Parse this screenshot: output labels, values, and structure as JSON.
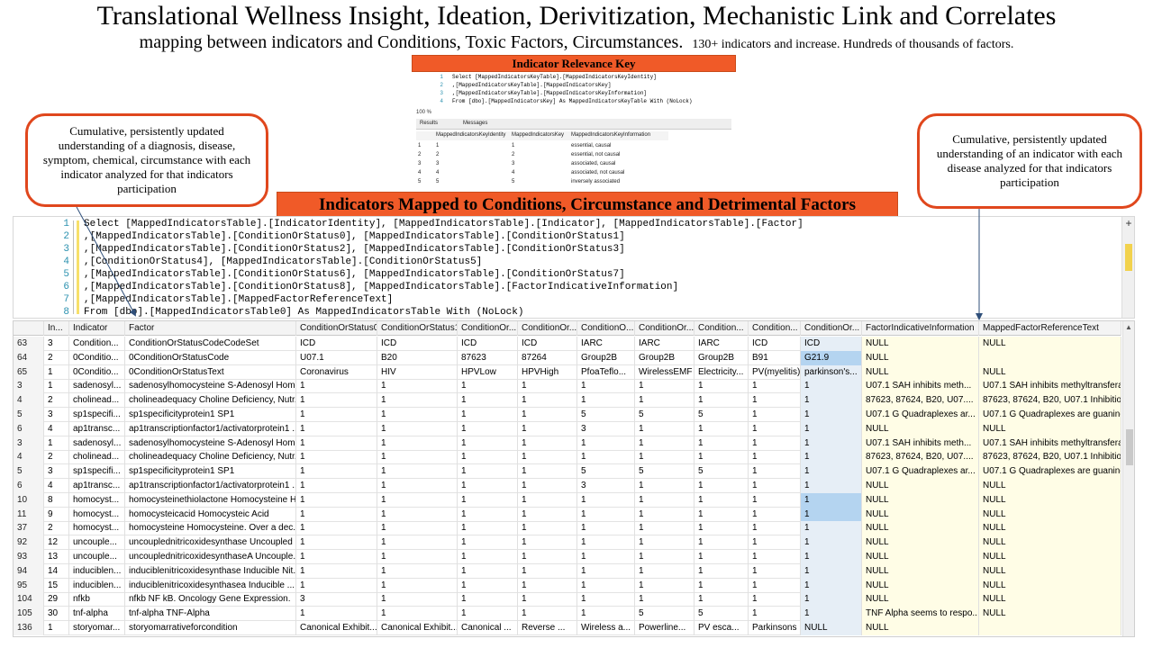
{
  "title": "Translational Wellness Insight, Ideation, Derivitization, Mechanistic Link and Correlates",
  "subtitle_main": "mapping between indicators and Conditions, Toxic Factors, Circumstances.",
  "subtitle_small": "130+ indicators and increase. Hundreds of thousands of factors.",
  "key_banner": "Indicator Relevance Key",
  "main_banner": "Indicators Mapped to Conditions, Circumstance and Detrimental Factors",
  "note_left": "Cumulative, persistently updated understanding of a diagnosis, disease, symptom, chemical, circumstance with each indicator analyzed for that indicators participation",
  "note_right": "Cumulative, persistently updated understanding of an indicator with each disease analyzed for that indicators participation",
  "key_query": {
    "line_numbers": [
      "1",
      "2",
      "3",
      "4"
    ],
    "lines": [
      "Select [MappedIndicatorsKeyTable].[MappedIndicatorsKeyIdentity]",
      "    ,[MappedIndicatorsKeyTable].[MappedIndicatorsKey]",
      "    ,[MappedIndicatorsKeyTable].[MappedIndicatorsKeyInformation]",
      "    From [dbo].[MappedIndicatorsKey] As MappedIndicatorsKeyTable With (NoLock)"
    ],
    "zoom": "100 %",
    "tab_results": "Results",
    "tab_messages": "Messages",
    "columns": [
      "MappedIndicatorsKeyIdentity",
      "MappedIndicatorsKey",
      "MappedIndicatorsKeyInformation"
    ],
    "rows": [
      [
        "1",
        "1",
        "1",
        "essential, causal"
      ],
      [
        "2",
        "2",
        "2",
        "essential, not causal"
      ],
      [
        "3",
        "3",
        "3",
        "associated, causal"
      ],
      [
        "4",
        "4",
        "4",
        "associated, not causal"
      ],
      [
        "5",
        "5",
        "5",
        "inversely associated"
      ]
    ]
  },
  "editor": {
    "line_numbers": [
      "1",
      "2",
      "3",
      "4",
      "5",
      "6",
      "7",
      "8"
    ],
    "lines": [
      "Select [MappedIndicatorsTable].[IndicatorIdentity], [MappedIndicatorsTable].[Indicator], [MappedIndicatorsTable].[Factor]",
      "    ,[MappedIndicatorsTable].[ConditionOrStatus0], [MappedIndicatorsTable].[ConditionOrStatus1]",
      "    ,[MappedIndicatorsTable].[ConditionOrStatus2], [MappedIndicatorsTable].[ConditionOrStatus3]",
      "    ,[ConditionOrStatus4], [MappedIndicatorsTable].[ConditionOrStatus5]",
      "    ,[MappedIndicatorsTable].[ConditionOrStatus6], [MappedIndicatorsTable].[ConditionOrStatus7]",
      "    ,[MappedIndicatorsTable].[ConditionOrStatus8], [MappedIndicatorsTable].[FactorIndicativeInformation]",
      "    ,[MappedIndicatorsTable].[MappedFactorReferenceText]",
      "  From [dbo].[MappedIndicatorsTable0] As MappedIndicatorsTable With (NoLock)"
    ],
    "plus_icon": "+"
  },
  "grid": {
    "columns": [
      "",
      "In...",
      "Indicator",
      "Factor",
      "ConditionOrStatus0",
      "ConditionOrStatus1",
      "ConditionOr...",
      "ConditionOr...",
      "ConditionO...",
      "ConditionOr...",
      "Condition...",
      "Condition...",
      "ConditionOr...",
      "FactorIndicativeInformation",
      "MappedFactorReferenceText"
    ],
    "rows": [
      [
        "63",
        "3",
        "Condition...",
        "ConditionOrStatusCodeCodeSet",
        "ICD",
        "ICD",
        "ICD",
        "ICD",
        "IARC",
        "IARC",
        "IARC",
        "ICD",
        "ICD",
        "NULL",
        "NULL"
      ],
      [
        "64",
        "2",
        "0Conditio...",
        "0ConditionOrStatusCode",
        "U07.1",
        "B20",
        "87623",
        "87264",
        "Group2B",
        "Group2B",
        "Group2B",
        "B91",
        "G21.9",
        "NULL",
        ""
      ],
      [
        "65",
        "1",
        "0Conditio...",
        "0ConditionOrStatusText",
        "Coronavirus",
        "HIV",
        "HPVLow",
        "HPVHigh",
        "PfoaTeflo...",
        "WirelessEMF",
        "Electricity...",
        "PV(myelitis)",
        "parkinson's...",
        "NULL",
        "NULL"
      ],
      [
        "3",
        "1",
        "sadenosyl...",
        "sadenosylhomocysteine S-Adenosyl Homo...",
        "1",
        "1",
        "1",
        "1",
        "1",
        "1",
        "1",
        "1",
        "1",
        "U07.1   SAH inhibits meth...",
        "U07.1   SAH inhibits methyltransferase"
      ],
      [
        "4",
        "2",
        "cholinead...",
        "cholineadequacy Choline Deficiency, Nutr...",
        "1",
        "1",
        "1",
        "1",
        "1",
        "1",
        "1",
        "1",
        "1",
        "87623, 87624, B20, U07....",
        "87623, 87624, B20, U07.1 Inhibition o"
      ],
      [
        "5",
        "3",
        "sp1specifi...",
        "sp1specificityprotein1 SP1",
        "1",
        "1",
        "1",
        "1",
        "5",
        "5",
        "5",
        "1",
        "1",
        "U07.1 G Quadraplexes ar...",
        "U07.1 G Quadraplexes are guanine er"
      ],
      [
        "6",
        "4",
        "ap1transc...",
        "ap1transcriptionfactor1/activatorprotein1 ...",
        "1",
        "1",
        "1",
        "1",
        "3",
        "1",
        "1",
        "1",
        "1",
        "NULL",
        "NULL"
      ],
      [
        "3",
        "1",
        "sadenosyl...",
        "sadenosylhomocysteine S-Adenosyl Homo...",
        "1",
        "1",
        "1",
        "1",
        "1",
        "1",
        "1",
        "1",
        "1",
        "U07.1   SAH inhibits meth...",
        "U07.1   SAH inhibits methyltransferase"
      ],
      [
        "4",
        "2",
        "cholinead...",
        "cholineadequacy Choline Deficiency, Nutr...",
        "1",
        "1",
        "1",
        "1",
        "1",
        "1",
        "1",
        "1",
        "1",
        "87623, 87624, B20, U07....",
        "87623, 87624, B20, U07.1 Inhibition o"
      ],
      [
        "5",
        "3",
        "sp1specifi...",
        "sp1specificityprotein1 SP1",
        "1",
        "1",
        "1",
        "1",
        "5",
        "5",
        "5",
        "1",
        "1",
        "U07.1 G Quadraplexes ar...",
        "U07.1 G Quadraplexes are guanine er"
      ],
      [
        "6",
        "4",
        "ap1transc...",
        "ap1transcriptionfactor1/activatorprotein1 ...",
        "1",
        "1",
        "1",
        "1",
        "3",
        "1",
        "1",
        "1",
        "1",
        "NULL",
        "NULL"
      ],
      [
        "10",
        "8",
        "homocyst...",
        "homocysteinethiolactone Homocysteine H...",
        "1",
        "1",
        "1",
        "1",
        "1",
        "1",
        "1",
        "1",
        "1",
        "NULL",
        "NULL"
      ],
      [
        "11",
        "9",
        "homocyst...",
        "homocysteicacid Homocysteic Acid",
        "1",
        "1",
        "1",
        "1",
        "1",
        "1",
        "1",
        "1",
        "1",
        "NULL",
        "NULL"
      ],
      [
        "37",
        "2",
        "homocyst...",
        "homocysteine Homocysteine. Over a dec...",
        "1",
        "1",
        "1",
        "1",
        "1",
        "1",
        "1",
        "1",
        "1",
        "NULL",
        "NULL"
      ],
      [
        "92",
        "12",
        "uncouple...",
        "uncouplednitricoxidesynthase Uncoupled ...",
        "1",
        "1",
        "1",
        "1",
        "1",
        "1",
        "1",
        "1",
        "1",
        "NULL",
        "NULL"
      ],
      [
        "93",
        "13",
        "uncouple...",
        "uncouplednitricoxidesynthaseA Uncouple...",
        "1",
        "1",
        "1",
        "1",
        "1",
        "1",
        "1",
        "1",
        "1",
        "NULL",
        "NULL"
      ],
      [
        "94",
        "14",
        "induciblen...",
        "induciblenitricoxidesynthase Inducible  Nit...",
        "1",
        "1",
        "1",
        "1",
        "1",
        "1",
        "1",
        "1",
        "1",
        "NULL",
        "NULL"
      ],
      [
        "95",
        "15",
        "induciblen...",
        "induciblenitricoxidesynthasea Inducible  ...",
        "1",
        "1",
        "1",
        "1",
        "1",
        "1",
        "1",
        "1",
        "1",
        "NULL",
        "NULL"
      ],
      [
        "104",
        "29",
        "nfkb",
        "nfkb NF kB. Oncology Gene Expression.",
        "3",
        "1",
        "1",
        "1",
        "1",
        "1",
        "1",
        "1",
        "1",
        "NULL",
        "NULL"
      ],
      [
        "105",
        "30",
        "tnf-alpha",
        "tnf-alpha TNF-Alpha",
        "1",
        "1",
        "1",
        "1",
        "1",
        "5",
        "5",
        "1",
        "1",
        "TNF Alpha seems to respo...",
        "NULL"
      ],
      [
        "136",
        "1",
        "storyomar...",
        "storyomarrativeforcondition",
        "Canonical Exhibit...",
        "Canonical Exhibit...",
        "Canonical ...",
        "Reverse ...",
        "Wireless a...",
        "Powerline...",
        "PV esca...",
        "Parkinsons ...",
        "NULL",
        "NULL",
        ""
      ]
    ]
  }
}
